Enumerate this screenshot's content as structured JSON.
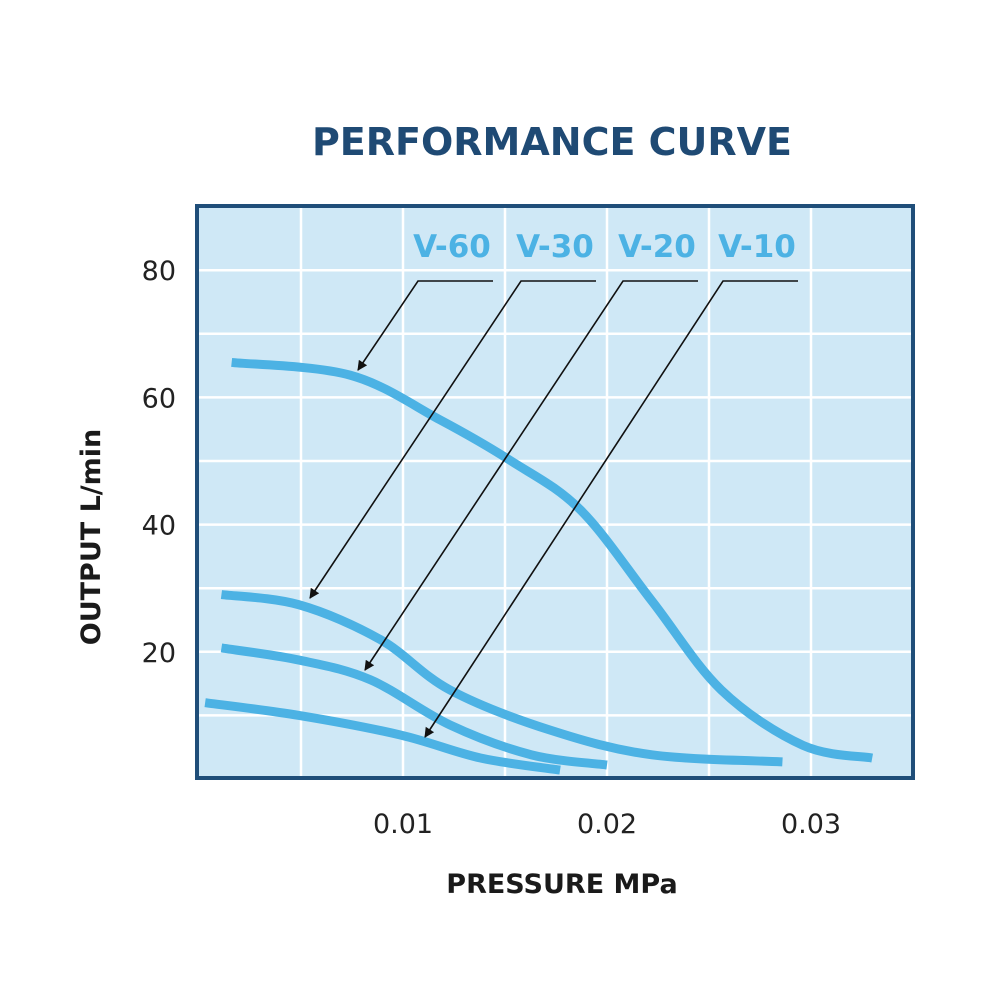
{
  "chart_data": {
    "type": "line",
    "title": "PERFORMANCE CURVE",
    "xlabel": "PRESSURE MPa",
    "ylabel": "OUTPUT L/min",
    "xlim": [
      0,
      0.0355
    ],
    "ylim": [
      0,
      90
    ],
    "xticks": [
      0.01,
      0.02,
      0.03
    ],
    "xtick_labels": [
      "0.01",
      "0.02",
      "0.03"
    ],
    "yticks": [
      20,
      40,
      60,
      80
    ],
    "ytick_labels": [
      "20",
      "40",
      "60",
      "80"
    ],
    "grid": true,
    "legend": "top (labels with leader arrows)",
    "colors": {
      "background": "#cfe8f6",
      "grid": "#ffffff",
      "frame": "#1f4e79",
      "series": "#4cb2e4",
      "title": "#1f4a74"
    },
    "series": [
      {
        "name": "V-60",
        "x": [
          0.0016,
          0.0074,
          0.0118,
          0.0153,
          0.0187,
          0.0222,
          0.0256,
          0.0296,
          0.033
        ],
        "y": [
          65.5,
          63.5,
          56.5,
          50,
          42.3,
          28,
          14,
          5.3,
          3.3
        ]
      },
      {
        "name": "V-30",
        "x": [
          0.0011,
          0.0049,
          0.0089,
          0.0123,
          0.0172,
          0.0222,
          0.0286
        ],
        "y": [
          29,
          27.4,
          21.9,
          14,
          7.7,
          3.8,
          2.7
        ]
      },
      {
        "name": "V-20",
        "x": [
          0.0011,
          0.0049,
          0.0084,
          0.0123,
          0.0163,
          0.02
        ],
        "y": [
          20.6,
          18.7,
          15.6,
          8.5,
          3.8,
          2.2
        ]
      },
      {
        "name": "V-10",
        "x": [
          0.0003,
          0.0049,
          0.0099,
          0.0138,
          0.0177
        ],
        "y": [
          12,
          10,
          6.9,
          3.3,
          1.4
        ]
      }
    ]
  }
}
